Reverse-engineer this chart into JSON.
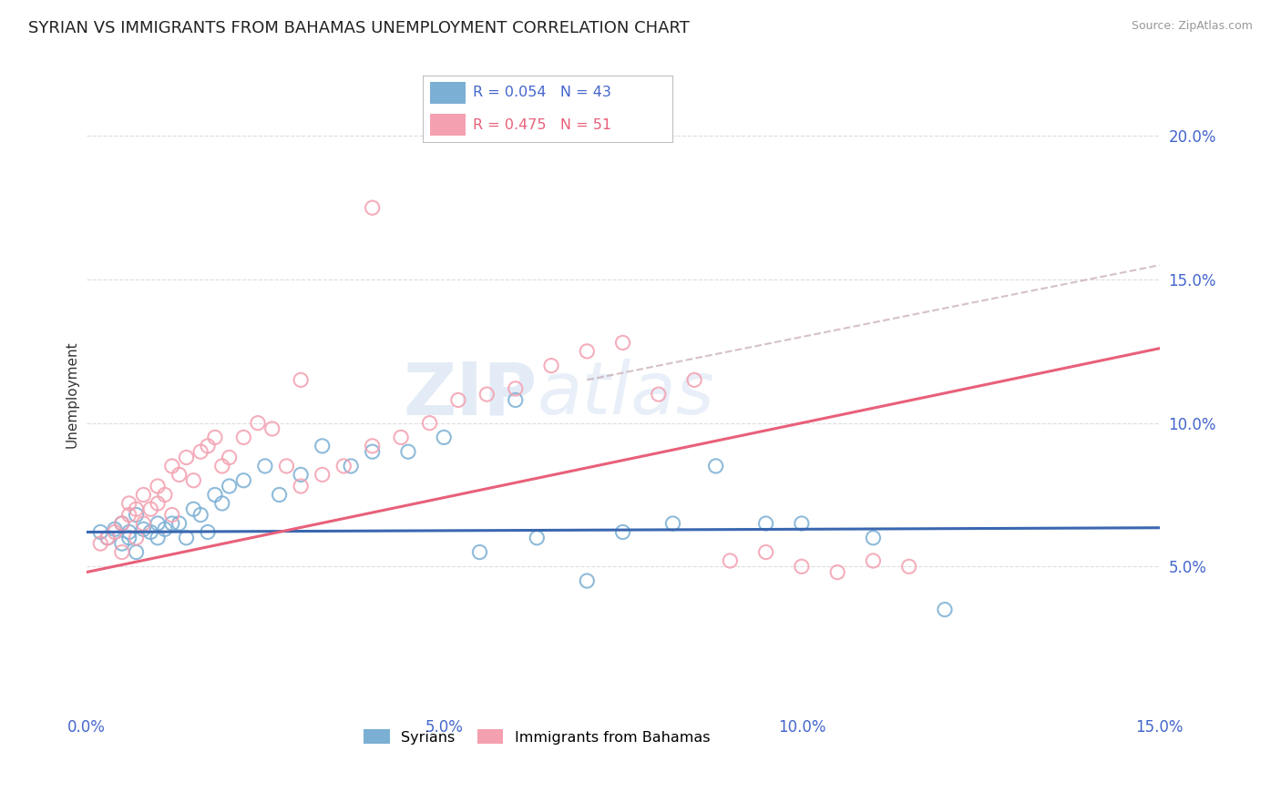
{
  "title": "SYRIAN VS IMMIGRANTS FROM BAHAMAS UNEMPLOYMENT CORRELATION CHART",
  "source": "Source: ZipAtlas.com",
  "ylabel": "Unemployment",
  "watermark": "ZIPAtlas",
  "series1_label": "Syrians",
  "series2_label": "Immigrants from Bahamas",
  "series1_R": 0.054,
  "series1_N": 43,
  "series2_R": 0.475,
  "series2_N": 51,
  "series1_color": "#7BAFD4",
  "series2_color": "#F4A0B0",
  "trend1_color": "#3A67B0",
  "trend2_color": "#E8607A",
  "dash_color": "#E8A0B0",
  "xmin": 0.0,
  "xmax": 0.15,
  "ymin": 0.0,
  "ymax": 0.22,
  "yticks": [
    0.05,
    0.1,
    0.15,
    0.2
  ],
  "xticks": [
    0.0,
    0.05,
    0.1,
    0.15
  ],
  "grid_color": "#CCCCCC",
  "background_color": "#FFFFFF",
  "tick_color": "#4466CC",
  "syrians_x": [
    0.002,
    0.003,
    0.004,
    0.005,
    0.005,
    0.006,
    0.006,
    0.007,
    0.007,
    0.008,
    0.009,
    0.01,
    0.01,
    0.011,
    0.012,
    0.013,
    0.014,
    0.015,
    0.016,
    0.017,
    0.018,
    0.019,
    0.02,
    0.022,
    0.025,
    0.027,
    0.03,
    0.033,
    0.037,
    0.04,
    0.045,
    0.05,
    0.055,
    0.06,
    0.063,
    0.07,
    0.075,
    0.082,
    0.088,
    0.095,
    0.1,
    0.11,
    0.12
  ],
  "syrians_y": [
    0.062,
    0.06,
    0.063,
    0.058,
    0.065,
    0.06,
    0.062,
    0.055,
    0.068,
    0.063,
    0.062,
    0.06,
    0.065,
    0.063,
    0.065,
    0.065,
    0.06,
    0.07,
    0.068,
    0.062,
    0.075,
    0.072,
    0.078,
    0.08,
    0.085,
    0.075,
    0.082,
    0.092,
    0.085,
    0.09,
    0.09,
    0.095,
    0.055,
    0.108,
    0.06,
    0.045,
    0.062,
    0.065,
    0.085,
    0.065,
    0.065,
    0.06,
    0.035
  ],
  "bahamas_x": [
    0.002,
    0.003,
    0.004,
    0.005,
    0.005,
    0.006,
    0.006,
    0.007,
    0.007,
    0.008,
    0.008,
    0.009,
    0.01,
    0.01,
    0.011,
    0.012,
    0.012,
    0.013,
    0.014,
    0.015,
    0.016,
    0.017,
    0.018,
    0.019,
    0.02,
    0.022,
    0.024,
    0.026,
    0.028,
    0.03,
    0.033,
    0.036,
    0.04,
    0.044,
    0.048,
    0.052,
    0.056,
    0.06,
    0.065,
    0.07,
    0.075,
    0.08,
    0.085,
    0.09,
    0.095,
    0.1,
    0.105,
    0.11,
    0.115,
    0.04,
    0.03
  ],
  "bahamas_y": [
    0.058,
    0.06,
    0.062,
    0.055,
    0.065,
    0.068,
    0.072,
    0.06,
    0.07,
    0.065,
    0.075,
    0.07,
    0.072,
    0.078,
    0.075,
    0.068,
    0.085,
    0.082,
    0.088,
    0.08,
    0.09,
    0.092,
    0.095,
    0.085,
    0.088,
    0.095,
    0.1,
    0.098,
    0.085,
    0.078,
    0.082,
    0.085,
    0.092,
    0.095,
    0.1,
    0.108,
    0.11,
    0.112,
    0.12,
    0.125,
    0.128,
    0.11,
    0.115,
    0.052,
    0.055,
    0.05,
    0.048,
    0.052,
    0.05,
    0.175,
    0.115
  ]
}
